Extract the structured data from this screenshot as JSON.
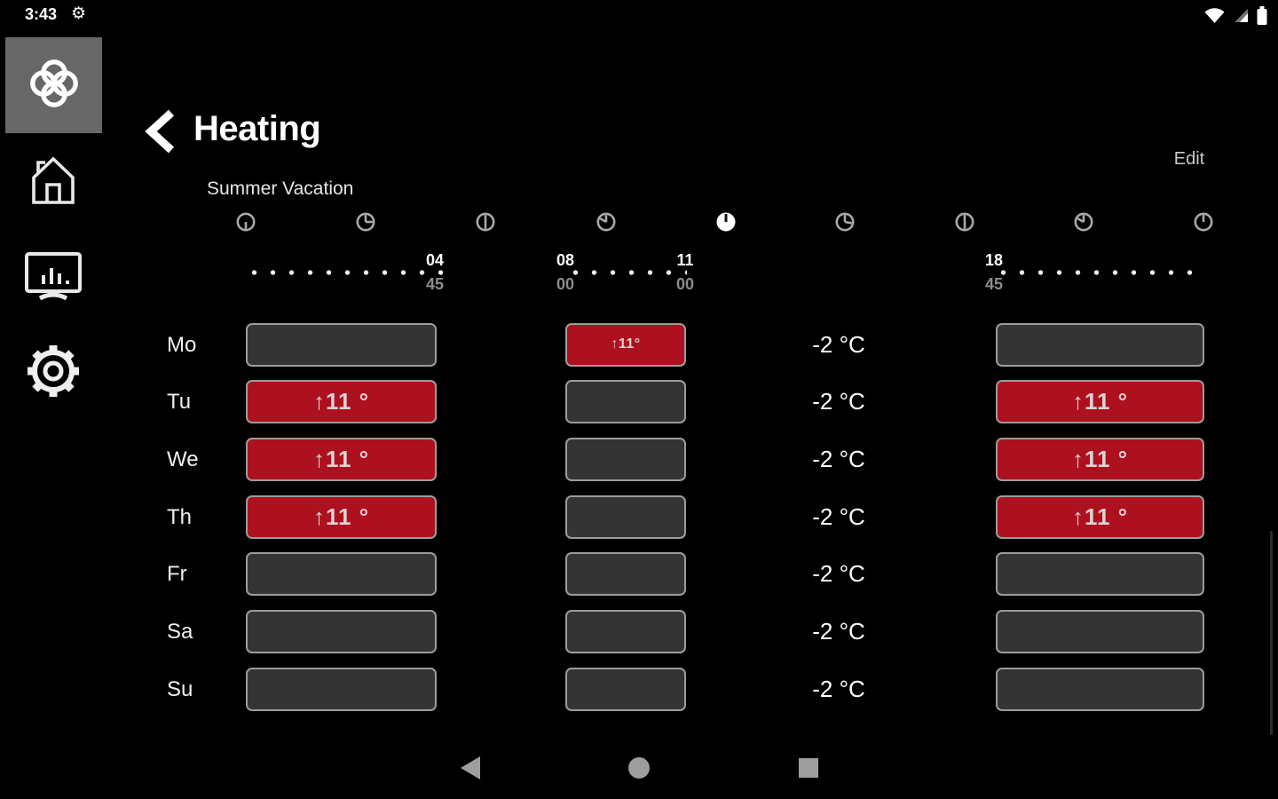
{
  "status_bar": {
    "time": "3:43",
    "icons": [
      "gear-icon",
      "wifi-icon",
      "cell-signal-icon",
      "battery-icon"
    ]
  },
  "sidebar": {
    "items": [
      {
        "name": "app-logo",
        "icon": "knot-logo-icon"
      },
      {
        "name": "home",
        "icon": "home-icon"
      },
      {
        "name": "reports",
        "icon": "monitor-chart-icon"
      },
      {
        "name": "settings",
        "icon": "gear-icon"
      }
    ]
  },
  "header": {
    "back_icon": "back-chevron-icon",
    "title": "Heating",
    "edit_label": "Edit"
  },
  "schedule": {
    "program_label": "Summer Vacation",
    "clock_icon": "clock-icon",
    "clock_markers": [
      {
        "hands": [
          180
        ],
        "filled": false
      },
      {
        "hands": [
          0,
          90
        ],
        "filled": false
      },
      {
        "hands": [
          0,
          180
        ],
        "filled": false
      },
      {
        "hands": [
          0,
          300
        ],
        "filled": false
      },
      {
        "hands": [
          0
        ],
        "filled": true
      },
      {
        "hands": [
          0,
          100
        ],
        "filled": false
      },
      {
        "hands": [
          0,
          180
        ],
        "filled": false
      },
      {
        "hands": [
          0,
          300
        ],
        "filled": false
      },
      {
        "hands": [
          0
        ],
        "filled": false
      }
    ],
    "timeline": {
      "time_labels": [
        {
          "hour": "04",
          "minute": "45"
        },
        {
          "hour": "08",
          "minute": "00"
        },
        {
          "hour": "11",
          "minute": "00"
        },
        {
          "hour": "18",
          "minute": "45"
        }
      ]
    },
    "rows": [
      {
        "day": "Mo",
        "temp": "-2 °C",
        "cells": {
          "col1": {
            "active": false,
            "label": ""
          },
          "col2": {
            "active": true,
            "label": "↑11°",
            "small": true
          },
          "col4": {
            "active": false,
            "label": ""
          }
        }
      },
      {
        "day": "Tu",
        "temp": "-2 °C",
        "cells": {
          "col1": {
            "active": true,
            "label": "↑11 °"
          },
          "col2": {
            "active": false,
            "label": ""
          },
          "col4": {
            "active": true,
            "label": "↑11 °"
          }
        }
      },
      {
        "day": "We",
        "temp": "-2 °C",
        "cells": {
          "col1": {
            "active": true,
            "label": "↑11 °"
          },
          "col2": {
            "active": false,
            "label": ""
          },
          "col4": {
            "active": true,
            "label": "↑11 °"
          }
        }
      },
      {
        "day": "Th",
        "temp": "-2 °C",
        "cells": {
          "col1": {
            "active": true,
            "label": "↑11 °"
          },
          "col2": {
            "active": false,
            "label": ""
          },
          "col4": {
            "active": true,
            "label": "↑11 °"
          }
        }
      },
      {
        "day": "Fr",
        "temp": "-2 °C",
        "cells": {
          "col1": {
            "active": false,
            "label": ""
          },
          "col2": {
            "active": false,
            "label": ""
          },
          "col4": {
            "active": false,
            "label": ""
          }
        }
      },
      {
        "day": "Sa",
        "temp": "-2 °C",
        "cells": {
          "col1": {
            "active": false,
            "label": ""
          },
          "col2": {
            "active": false,
            "label": ""
          },
          "col4": {
            "active": false,
            "label": ""
          }
        }
      },
      {
        "day": "Su",
        "temp": "-2 °C",
        "cells": {
          "col1": {
            "active": false,
            "label": ""
          },
          "col2": {
            "active": false,
            "label": ""
          },
          "col4": {
            "active": false,
            "label": ""
          }
        }
      }
    ]
  },
  "nav_bar": {
    "buttons": [
      {
        "name": "back",
        "icon": "back-triangle-icon"
      },
      {
        "name": "home",
        "icon": "home-circle-icon"
      },
      {
        "name": "recents",
        "icon": "recents-square-icon"
      }
    ]
  },
  "colors": {
    "background": "#000000",
    "accent_red": "#ad101e",
    "box_fill": "#343434",
    "box_border": "#9c9c9c",
    "tile_gray": "#676767"
  }
}
